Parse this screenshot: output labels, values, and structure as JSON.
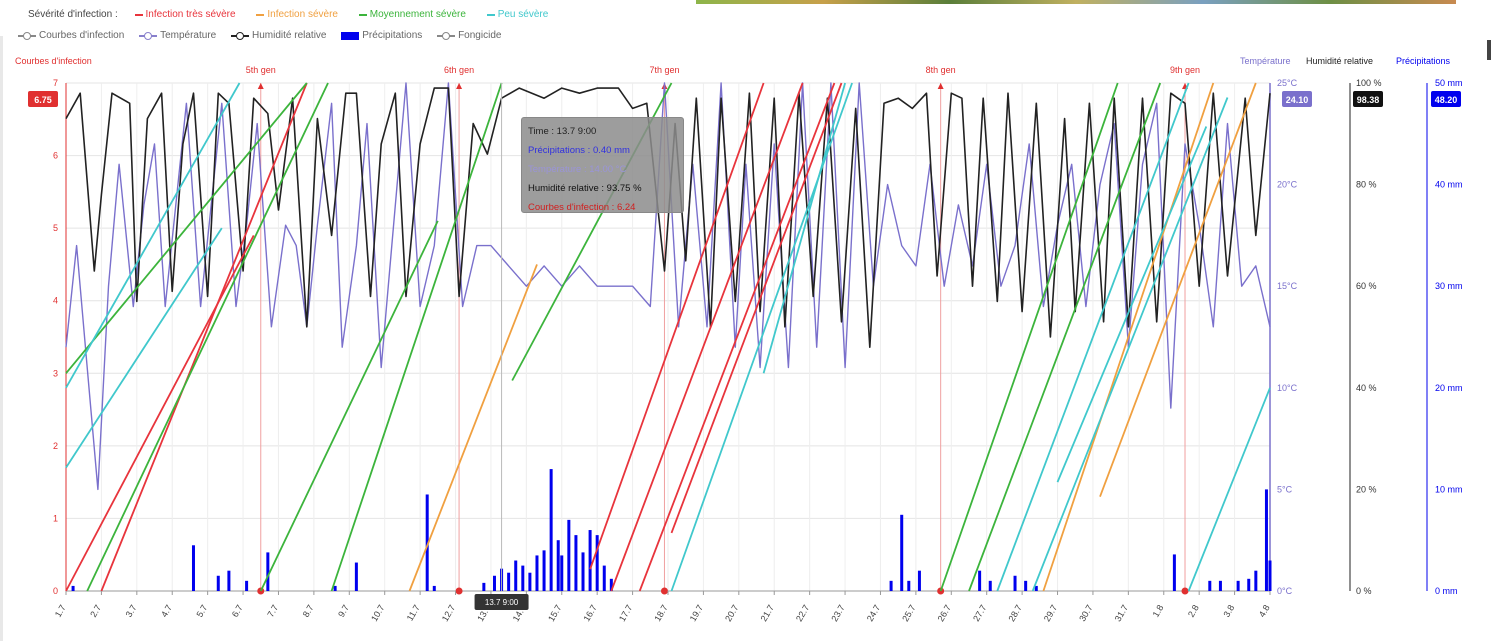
{
  "legend": {
    "severity_title": "Sévérité d'infection :",
    "severity_items": [
      {
        "label": "Infection très sévère",
        "color": "#e8343c"
      },
      {
        "label": "Infection sévère",
        "color": "#f0a040"
      },
      {
        "label": "Moyennement sévère",
        "color": "#3cb43c"
      },
      {
        "label": "Peu sévère",
        "color": "#40c8cc"
      }
    ],
    "series_items": [
      {
        "label": "Courbes d'infection",
        "color": "#888888",
        "marker": "line"
      },
      {
        "label": "Température",
        "color": "#8880cc",
        "marker": "line"
      },
      {
        "label": "Humidité relative",
        "color": "#222222",
        "marker": "line"
      },
      {
        "label": "Précipitations",
        "color": "#0000ee",
        "marker": "bar"
      },
      {
        "label": "Fongicide",
        "color": "#888888",
        "marker": "line"
      }
    ]
  },
  "tooltip": {
    "time": "Time : 13.7 9:00",
    "precip": "Précipitations : 0.40 mm",
    "temp": "Température : 14.00 °C",
    "humidity": "Humidité relative : 93.75 %",
    "infection": "Courbes d'infection : 6.24"
  },
  "chart_data": {
    "type": "line",
    "colors": {
      "infection_axis": "#e03030",
      "temperature": "#7a70cc",
      "humidity": "#222222",
      "precipitation": "#0000ee",
      "very_severe": "#e8343c",
      "severe": "#f0a040",
      "medium": "#3cb43c",
      "low": "#40c8cc"
    },
    "axes": {
      "left": {
        "label": "Courbes d'infection",
        "ticks": [
          "0",
          "1",
          "2",
          "3",
          "4",
          "5",
          "6",
          "7"
        ],
        "range": [
          0,
          7
        ],
        "current_value": "6.75"
      },
      "temperature": {
        "label": "Température",
        "ticks": [
          "0°C",
          "5°C",
          "10°C",
          "15°C",
          "20°C",
          "25°C"
        ],
        "range": [
          0,
          25
        ],
        "current_value": "24.10"
      },
      "humidity": {
        "label": "Humidité relative",
        "ticks": [
          "0 %",
          "20 %",
          "40 %",
          "60 %",
          "80 %",
          "100 %"
        ],
        "range": [
          0,
          100
        ],
        "current_value": "98.38"
      },
      "precipitation": {
        "label": "Précipitations",
        "ticks": [
          "0 mm",
          "10 mm",
          "20 mm",
          "30 mm",
          "40 mm",
          "50 mm"
        ],
        "range": [
          0,
          50
        ],
        "current_value": "48.20"
      }
    },
    "x_ticks": [
      "1.7",
      "2.7",
      "3.7",
      "4.7",
      "5.7",
      "6.7",
      "7.7",
      "8.7",
      "9.7",
      "10.7",
      "11.7",
      "12.7",
      "13.7",
      "14.7",
      "15.7",
      "16.7",
      "17.7",
      "18.7",
      "19.7",
      "20.7",
      "21.7",
      "22.7",
      "23.7",
      "24.7",
      "25.7",
      "26.7",
      "27.7",
      "28.7",
      "29.7",
      "30.7",
      "31.7",
      "1.8",
      "2.8",
      "3.8",
      "4.8"
    ],
    "x_range": [
      1,
      35
    ],
    "cursor_label": "13.7 9:00",
    "cursor_x": 13.3,
    "generations": [
      {
        "label": "5th gen",
        "x": 6.5
      },
      {
        "label": "6th gen",
        "x": 12.1
      },
      {
        "label": "7th gen",
        "x": 17.9
      },
      {
        "label": "8th gen",
        "x": 25.7
      },
      {
        "label": "9th gen",
        "x": 32.6
      }
    ],
    "infection_lines": [
      {
        "severity": "very_severe",
        "points": [
          [
            1,
            0
          ],
          [
            6.3,
            4.9
          ]
        ]
      },
      {
        "severity": "very_severe",
        "points": [
          [
            2,
            0
          ],
          [
            7.8,
            7
          ]
        ]
      },
      {
        "severity": "very_severe",
        "points": [
          [
            15.8,
            0.3
          ],
          [
            20.7,
            7
          ]
        ]
      },
      {
        "severity": "very_severe",
        "points": [
          [
            16.4,
            0
          ],
          [
            21.8,
            7
          ]
        ]
      },
      {
        "severity": "very_severe",
        "points": [
          [
            17.2,
            0
          ],
          [
            22.7,
            7
          ]
        ]
      },
      {
        "severity": "very_severe",
        "points": [
          [
            18.1,
            0.8
          ],
          [
            22.9,
            7
          ]
        ]
      },
      {
        "severity": "severe",
        "points": [
          [
            10.7,
            0
          ],
          [
            14.3,
            4.5
          ]
        ]
      },
      {
        "severity": "severe",
        "points": [
          [
            28.6,
            0
          ],
          [
            33.4,
            7
          ]
        ]
      },
      {
        "severity": "severe",
        "points": [
          [
            30.2,
            1.3
          ],
          [
            34.6,
            7
          ]
        ]
      },
      {
        "severity": "medium",
        "points": [
          [
            1,
            3
          ],
          [
            7.8,
            7
          ]
        ]
      },
      {
        "severity": "medium",
        "points": [
          [
            1.6,
            0
          ],
          [
            8.4,
            7
          ]
        ]
      },
      {
        "severity": "medium",
        "points": [
          [
            6.5,
            0
          ],
          [
            11.5,
            5.1
          ]
        ]
      },
      {
        "severity": "medium",
        "points": [
          [
            8.5,
            0
          ],
          [
            13.3,
            7
          ]
        ]
      },
      {
        "severity": "medium",
        "points": [
          [
            13.6,
            2.9
          ],
          [
            18.1,
            7
          ]
        ]
      },
      {
        "severity": "medium",
        "points": [
          [
            25.7,
            0
          ],
          [
            30.7,
            7
          ]
        ]
      },
      {
        "severity": "medium",
        "points": [
          [
            26.5,
            0
          ],
          [
            31.9,
            7
          ]
        ]
      },
      {
        "severity": "low",
        "points": [
          [
            1,
            1.7
          ],
          [
            5.4,
            5
          ]
        ]
      },
      {
        "severity": "low",
        "points": [
          [
            1,
            2.8
          ],
          [
            5.9,
            7
          ]
        ]
      },
      {
        "severity": "low",
        "points": [
          [
            18.1,
            0
          ],
          [
            23.2,
            7
          ]
        ]
      },
      {
        "severity": "low",
        "points": [
          [
            20.7,
            3
          ],
          [
            23,
            7
          ]
        ]
      },
      {
        "severity": "low",
        "points": [
          [
            27.3,
            0
          ],
          [
            32.7,
            7
          ]
        ]
      },
      {
        "severity": "low",
        "points": [
          [
            28.3,
            0
          ],
          [
            33.8,
            6.8
          ]
        ]
      },
      {
        "severity": "low",
        "points": [
          [
            29,
            1.5
          ],
          [
            33.2,
            6.4
          ]
        ]
      },
      {
        "severity": "low",
        "points": [
          [
            32.7,
            0
          ],
          [
            35,
            2.8
          ]
        ]
      }
    ],
    "humidity": [
      [
        1,
        93
      ],
      [
        1.4,
        98
      ],
      [
        1.8,
        63
      ],
      [
        2,
        78
      ],
      [
        2.3,
        98
      ],
      [
        2.8,
        96
      ],
      [
        3,
        57
      ],
      [
        3.3,
        93
      ],
      [
        3.7,
        98
      ],
      [
        4,
        59
      ],
      [
        4.3,
        88
      ],
      [
        4.6,
        98
      ],
      [
        5,
        58
      ],
      [
        5.3,
        98
      ],
      [
        5.6,
        96
      ],
      [
        6,
        63
      ],
      [
        6.3,
        97
      ],
      [
        6.7,
        94
      ],
      [
        7,
        75
      ],
      [
        7.4,
        97
      ],
      [
        7.8,
        52
      ],
      [
        8.1,
        93
      ],
      [
        8.5,
        70
      ],
      [
        8.9,
        98
      ],
      [
        9.2,
        98
      ],
      [
        9.6,
        58
      ],
      [
        9.9,
        88
      ],
      [
        10.3,
        98
      ],
      [
        10.6,
        58
      ],
      [
        11,
        88
      ],
      [
        11.4,
        99
      ],
      [
        11.8,
        99
      ],
      [
        12.1,
        58
      ],
      [
        12.5,
        92
      ],
      [
        12.9,
        86
      ],
      [
        13.3,
        97
      ],
      [
        13.8,
        99
      ],
      [
        14.5,
        97
      ],
      [
        15,
        99
      ],
      [
        15.5,
        98
      ],
      [
        16,
        99
      ],
      [
        16.6,
        99
      ],
      [
        17,
        95
      ],
      [
        17.4,
        96
      ],
      [
        17.9,
        63
      ],
      [
        18.2,
        92
      ],
      [
        18.5,
        65
      ],
      [
        18.8,
        97
      ],
      [
        19.2,
        52
      ],
      [
        19.5,
        97
      ],
      [
        19.9,
        57
      ],
      [
        20.3,
        98
      ],
      [
        20.6,
        55
      ],
      [
        21,
        97
      ],
      [
        21.3,
        52
      ],
      [
        21.7,
        98
      ],
      [
        22.1,
        58
      ],
      [
        22.5,
        97
      ],
      [
        22.9,
        53
      ],
      [
        23.3,
        95
      ],
      [
        23.7,
        48
      ],
      [
        24.1,
        96
      ],
      [
        24.5,
        97
      ],
      [
        24.9,
        95
      ],
      [
        25.3,
        98
      ],
      [
        25.6,
        62
      ],
      [
        26,
        98
      ],
      [
        26.3,
        97
      ],
      [
        26.6,
        60
      ],
      [
        26.9,
        97
      ],
      [
        27.3,
        57
      ],
      [
        27.6,
        98
      ],
      [
        28,
        55
      ],
      [
        28.4,
        96
      ],
      [
        28.8,
        50
      ],
      [
        29.2,
        93
      ],
      [
        29.5,
        55
      ],
      [
        29.9,
        96
      ],
      [
        30.3,
        53
      ],
      [
        30.6,
        97
      ],
      [
        31,
        52
      ],
      [
        31.4,
        97
      ],
      [
        31.8,
        53
      ],
      [
        32.2,
        98
      ],
      [
        32.6,
        96
      ],
      [
        33,
        60
      ],
      [
        33.4,
        98
      ],
      [
        33.8,
        62
      ],
      [
        34.3,
        97
      ],
      [
        34.6,
        70
      ],
      [
        35,
        98
      ]
    ],
    "temperature": [
      [
        1,
        12
      ],
      [
        1.3,
        17
      ],
      [
        1.6,
        11
      ],
      [
        1.9,
        5
      ],
      [
        2.2,
        15
      ],
      [
        2.5,
        21
      ],
      [
        2.9,
        14
      ],
      [
        3.2,
        19
      ],
      [
        3.5,
        22
      ],
      [
        3.8,
        14
      ],
      [
        4.1,
        19
      ],
      [
        4.4,
        24
      ],
      [
        4.8,
        14
      ],
      [
        5.1,
        19
      ],
      [
        5.4,
        24
      ],
      [
        5.8,
        14
      ],
      [
        6.1,
        18
      ],
      [
        6.4,
        23
      ],
      [
        6.8,
        13
      ],
      [
        7.2,
        18
      ],
      [
        7.5,
        17
      ],
      [
        7.8,
        13
      ],
      [
        8.1,
        18
      ],
      [
        8.5,
        24
      ],
      [
        8.8,
        12
      ],
      [
        9.2,
        17
      ],
      [
        9.5,
        23
      ],
      [
        9.9,
        11
      ],
      [
        10.2,
        17
      ],
      [
        10.6,
        25
      ],
      [
        11,
        14
      ],
      [
        11.4,
        17
      ],
      [
        11.8,
        25
      ],
      [
        12.2,
        14
      ],
      [
        12.6,
        17
      ],
      [
        13,
        17
      ],
      [
        13.5,
        16
      ],
      [
        14,
        15
      ],
      [
        14.5,
        16
      ],
      [
        15,
        15
      ],
      [
        15.5,
        16
      ],
      [
        16,
        15
      ],
      [
        16.5,
        15
      ],
      [
        17,
        15
      ],
      [
        17.5,
        14
      ],
      [
        17.9,
        25
      ],
      [
        18.3,
        13
      ],
      [
        18.7,
        21
      ],
      [
        19.1,
        13
      ],
      [
        19.5,
        25
      ],
      [
        19.9,
        12
      ],
      [
        20.2,
        21
      ],
      [
        20.6,
        11
      ],
      [
        21,
        22
      ],
      [
        21.4,
        11
      ],
      [
        21.8,
        25
      ],
      [
        22.2,
        12
      ],
      [
        22.6,
        25
      ],
      [
        23,
        11
      ],
      [
        23.4,
        25
      ],
      [
        23.8,
        15
      ],
      [
        24.2,
        20
      ],
      [
        24.6,
        17
      ],
      [
        25,
        16
      ],
      [
        25.4,
        21
      ],
      [
        25.8,
        15
      ],
      [
        26.2,
        19
      ],
      [
        26.6,
        16
      ],
      [
        27,
        21
      ],
      [
        27.4,
        15
      ],
      [
        27.8,
        17
      ],
      [
        28.2,
        22
      ],
      [
        28.6,
        14
      ],
      [
        29,
        18
      ],
      [
        29.4,
        21
      ],
      [
        29.8,
        14
      ],
      [
        30.2,
        20
      ],
      [
        30.6,
        23
      ],
      [
        31,
        12
      ],
      [
        31.4,
        21
      ],
      [
        31.8,
        24
      ],
      [
        32.2,
        9
      ],
      [
        32.6,
        22
      ],
      [
        33,
        18
      ],
      [
        33.4,
        13
      ],
      [
        33.8,
        23
      ],
      [
        34.2,
        15
      ],
      [
        34.6,
        16
      ],
      [
        35,
        13
      ]
    ],
    "precipitation": [
      [
        1.2,
        0.5
      ],
      [
        4.6,
        4.5
      ],
      [
        5.3,
        1.5
      ],
      [
        5.6,
        2
      ],
      [
        6.1,
        1
      ],
      [
        6.7,
        3.8
      ],
      [
        8.6,
        0.5
      ],
      [
        9.2,
        2.8
      ],
      [
        11.2,
        9.5
      ],
      [
        11.4,
        0.5
      ],
      [
        12.8,
        0.8
      ],
      [
        13.1,
        1.5
      ],
      [
        13.3,
        2.2
      ],
      [
        13.5,
        1.8
      ],
      [
        13.7,
        3
      ],
      [
        13.9,
        2.5
      ],
      [
        14.1,
        1.8
      ],
      [
        14.3,
        3.5
      ],
      [
        14.5,
        4
      ],
      [
        14.7,
        12
      ],
      [
        14.9,
        5
      ],
      [
        15,
        3.5
      ],
      [
        15.2,
        7
      ],
      [
        15.4,
        5.5
      ],
      [
        15.6,
        3.8
      ],
      [
        15.8,
        6
      ],
      [
        16,
        5.5
      ],
      [
        16.2,
        2.5
      ],
      [
        16.4,
        1.2
      ],
      [
        24.3,
        1
      ],
      [
        24.6,
        7.5
      ],
      [
        24.8,
        1
      ],
      [
        25.1,
        2
      ],
      [
        26.8,
        2
      ],
      [
        27.1,
        1
      ],
      [
        27.8,
        1.5
      ],
      [
        28.1,
        1
      ],
      [
        28.4,
        0.5
      ],
      [
        32.3,
        3.6
      ],
      [
        33.3,
        1
      ],
      [
        33.6,
        1
      ],
      [
        34.1,
        1
      ],
      [
        34.4,
        1.2
      ],
      [
        34.6,
        2
      ],
      [
        34.9,
        10
      ],
      [
        35,
        3
      ]
    ]
  }
}
